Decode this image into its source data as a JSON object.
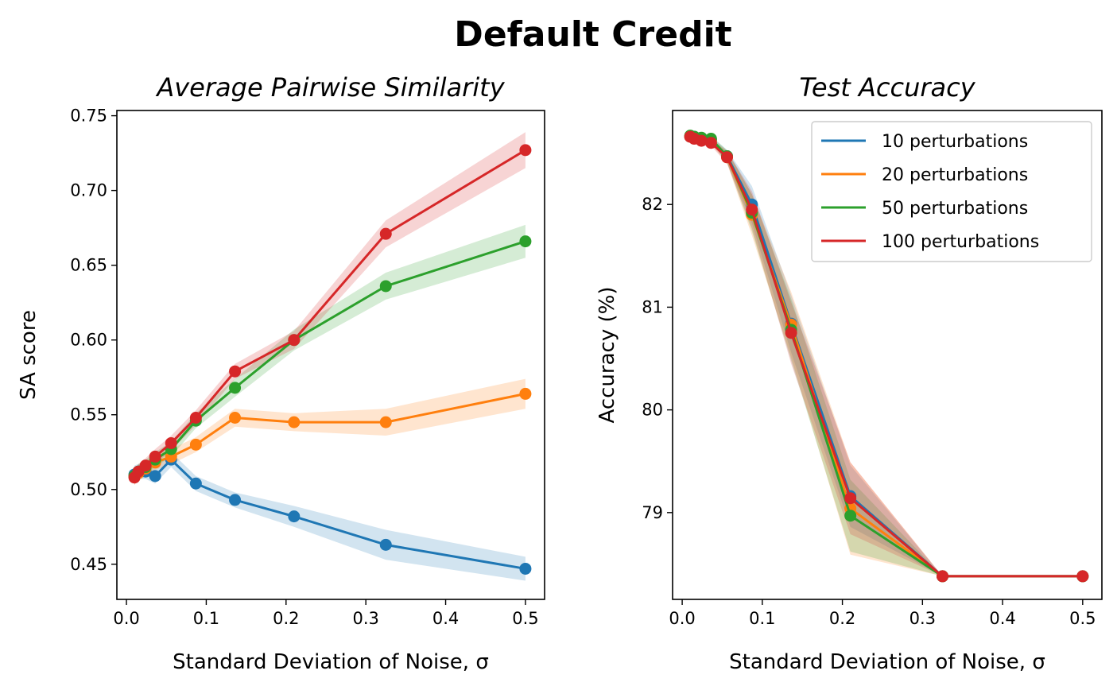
{
  "figure": {
    "title": "Default Credit"
  },
  "chart_data": [
    {
      "type": "line",
      "title": "Average Pairwise Similarity",
      "xlabel": "Standard Deviation of Noise, σ",
      "ylabel": "SA score",
      "xlim": [
        -0.012,
        0.524
      ],
      "ylim": [
        0.4265,
        0.7535
      ],
      "xticks": [
        0.0,
        0.1,
        0.2,
        0.3,
        0.4,
        0.5
      ],
      "xtick_labels": [
        "0.0",
        "0.1",
        "0.2",
        "0.3",
        "0.4",
        "0.5"
      ],
      "yticks": [
        0.45,
        0.5,
        0.55,
        0.6,
        0.65,
        0.7,
        0.75
      ],
      "ytick_labels": [
        "0.45",
        "0.50",
        "0.55",
        "0.60",
        "0.65",
        "0.70",
        "0.75"
      ],
      "grid": false,
      "x": [
        0.01,
        0.015,
        0.024,
        0.036,
        0.056,
        0.087,
        0.136,
        0.21,
        0.325,
        0.5
      ],
      "series": [
        {
          "name": "10 perturbations",
          "color": "#1f77b4",
          "values": [
            0.51,
            0.512,
            0.512,
            0.509,
            0.52,
            0.504,
            0.493,
            0.482,
            0.463,
            0.447
          ],
          "band": [
            0.006,
            0.005,
            0.005,
            0.005,
            0.005,
            0.005,
            0.005,
            0.007,
            0.01,
            0.008
          ]
        },
        {
          "name": "20 perturbations",
          "color": "#ff7f0e",
          "values": [
            0.509,
            0.511,
            0.514,
            0.518,
            0.522,
            0.53,
            0.548,
            0.545,
            0.545,
            0.564
          ],
          "band": [
            0.006,
            0.005,
            0.005,
            0.005,
            0.005,
            0.005,
            0.006,
            0.006,
            0.009,
            0.01
          ]
        },
        {
          "name": "50 perturbations",
          "color": "#2ca02c",
          "values": [
            0.509,
            0.512,
            0.515,
            0.52,
            0.527,
            0.546,
            0.568,
            0.6,
            0.636,
            0.666
          ],
          "band": [
            0.005,
            0.005,
            0.005,
            0.005,
            0.005,
            0.005,
            0.006,
            0.007,
            0.009,
            0.011
          ]
        },
        {
          "name": "100 perturbations",
          "color": "#d62728",
          "values": [
            0.508,
            0.512,
            0.516,
            0.522,
            0.531,
            0.548,
            0.579,
            0.6,
            0.671,
            0.727
          ],
          "band": [
            0.005,
            0.005,
            0.005,
            0.005,
            0.005,
            0.005,
            0.005,
            0.006,
            0.009,
            0.012
          ]
        }
      ]
    },
    {
      "type": "line",
      "title": "Test Accuracy",
      "xlabel": "Standard Deviation of Noise, σ",
      "ylabel": "Accuracy (%)",
      "xlim": [
        -0.012,
        0.524
      ],
      "ylim": [
        78.155,
        82.915
      ],
      "xticks": [
        0.0,
        0.1,
        0.2,
        0.3,
        0.4,
        0.5
      ],
      "xtick_labels": [
        "0.0",
        "0.1",
        "0.2",
        "0.3",
        "0.4",
        "0.5"
      ],
      "yticks": [
        79,
        80,
        81,
        82
      ],
      "ytick_labels": [
        "79",
        "80",
        "81",
        "82"
      ],
      "grid": false,
      "legend": "top-right",
      "x": [
        0.01,
        0.015,
        0.024,
        0.036,
        0.056,
        0.087,
        0.136,
        0.21,
        0.325,
        0.5
      ],
      "series": [
        {
          "name": "10 perturbations",
          "color": "#1f77b4",
          "values": [
            82.66,
            82.66,
            82.64,
            82.63,
            82.47,
            82.0,
            80.84,
            79.16,
            78.38,
            78.38
          ],
          "band": [
            0.02,
            0.02,
            0.02,
            0.03,
            0.06,
            0.18,
            0.28,
            0.3,
            0.0,
            0.0
          ]
        },
        {
          "name": "20 perturbations",
          "color": "#ff7f0e",
          "values": [
            82.66,
            82.65,
            82.63,
            82.62,
            82.46,
            81.9,
            80.83,
            79.04,
            78.38,
            78.38
          ],
          "band": [
            0.02,
            0.02,
            0.02,
            0.03,
            0.06,
            0.2,
            0.32,
            0.45,
            0.0,
            0.0
          ]
        },
        {
          "name": "50 perturbations",
          "color": "#2ca02c",
          "values": [
            82.67,
            82.66,
            82.65,
            82.64,
            82.47,
            81.92,
            80.78,
            78.97,
            78.38,
            78.38
          ],
          "band": [
            0.02,
            0.02,
            0.02,
            0.03,
            0.06,
            0.18,
            0.3,
            0.35,
            0.0,
            0.0
          ]
        },
        {
          "name": "100 perturbations",
          "color": "#d62728",
          "values": [
            82.66,
            82.64,
            82.62,
            82.6,
            82.46,
            81.95,
            80.75,
            79.14,
            78.38,
            78.38
          ],
          "band": [
            0.02,
            0.02,
            0.02,
            0.03,
            0.06,
            0.18,
            0.3,
            0.35,
            0.0,
            0.0
          ]
        }
      ]
    }
  ]
}
